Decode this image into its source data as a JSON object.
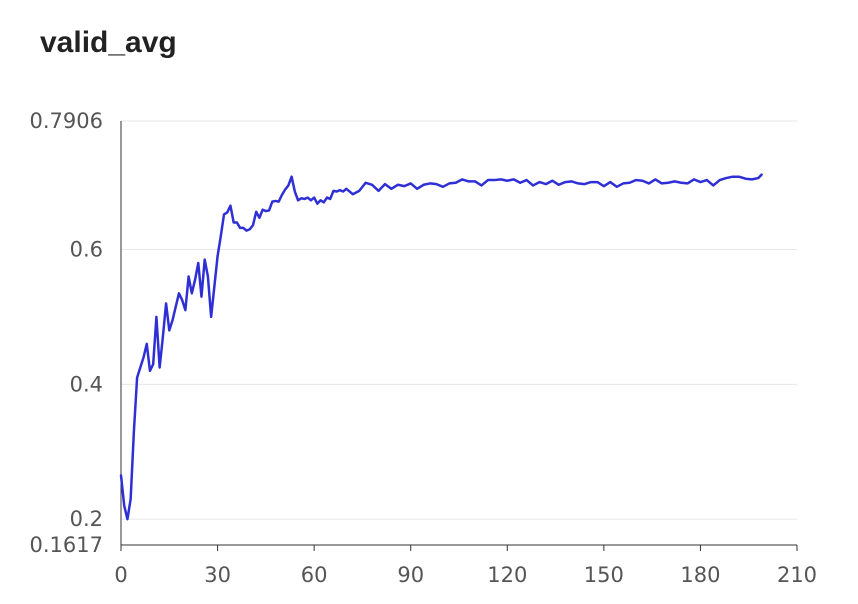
{
  "chart_data": {
    "type": "line",
    "title": "valid_avg",
    "xlabel": "",
    "ylabel": "",
    "xlim": [
      0,
      210
    ],
    "ylim": [
      0.1617,
      0.7906
    ],
    "xticks": [
      0,
      30,
      60,
      90,
      120,
      150,
      180,
      210
    ],
    "xtick_labels": [
      "0",
      "30",
      "60",
      "90",
      "120",
      "150",
      "180",
      "210"
    ],
    "yticks": [
      0.1617,
      0.2,
      0.4,
      0.6,
      0.7906
    ],
    "ytick_labels": [
      "0.1617",
      "0.2",
      "0.4",
      "0.6",
      "0.7906"
    ],
    "grid": true,
    "series_color": "#2f2fd6",
    "series": [
      {
        "x": [
          0,
          1,
          2,
          3,
          4,
          5,
          6,
          7,
          8,
          9,
          10,
          11,
          12,
          13,
          14,
          15,
          16,
          17,
          18,
          19,
          20,
          21,
          22,
          23,
          24,
          25,
          26,
          27,
          28,
          29,
          30,
          31,
          32,
          33,
          34,
          35,
          36,
          37,
          38,
          39,
          40,
          41,
          42,
          43,
          44,
          45,
          46,
          47,
          48,
          49,
          50,
          51,
          52,
          53,
          54,
          55,
          56,
          57,
          58,
          59,
          60,
          61,
          62,
          63,
          64,
          65,
          66,
          67,
          68,
          69,
          70,
          72,
          74,
          76,
          78,
          80,
          82,
          84,
          86,
          88,
          90,
          92,
          94,
          96,
          98,
          100,
          102,
          104,
          106,
          108,
          110,
          112,
          114,
          116,
          118,
          120,
          122,
          124,
          126,
          128,
          130,
          132,
          134,
          136,
          138,
          140,
          142,
          144,
          146,
          148,
          150,
          152,
          154,
          156,
          158,
          160,
          162,
          164,
          166,
          168,
          170,
          172,
          174,
          176,
          178,
          180,
          182,
          184,
          186,
          188,
          190,
          192,
          194,
          196,
          198,
          199
        ],
        "values": [
          0.265,
          0.22,
          0.2,
          0.23,
          0.33,
          0.41,
          0.425,
          0.44,
          0.46,
          0.42,
          0.43,
          0.5,
          0.425,
          0.47,
          0.52,
          0.48,
          0.495,
          0.515,
          0.535,
          0.525,
          0.51,
          0.56,
          0.535,
          0.555,
          0.58,
          0.53,
          0.585,
          0.56,
          0.5,
          0.545,
          0.59,
          0.62,
          0.652,
          0.655,
          0.665,
          0.64,
          0.64,
          0.632,
          0.632,
          0.628,
          0.63,
          0.636,
          0.656,
          0.647,
          0.659,
          0.657,
          0.658,
          0.671,
          0.672,
          0.671,
          0.681,
          0.689,
          0.695,
          0.708,
          0.686,
          0.673,
          0.676,
          0.675,
          0.677,
          0.673,
          0.677,
          0.668,
          0.673,
          0.67,
          0.677,
          0.675,
          0.687,
          0.686,
          0.688,
          0.686,
          0.69,
          0.682,
          0.687,
          0.699,
          0.696,
          0.687,
          0.697,
          0.69,
          0.696,
          0.694,
          0.698,
          0.69,
          0.696,
          0.698,
          0.697,
          0.693,
          0.698,
          0.699,
          0.704,
          0.701,
          0.701,
          0.695,
          0.703,
          0.703,
          0.704,
          0.702,
          0.704,
          0.699,
          0.703,
          0.695,
          0.7,
          0.697,
          0.702,
          0.696,
          0.7,
          0.701,
          0.698,
          0.697,
          0.7,
          0.7,
          0.694,
          0.7,
          0.693,
          0.698,
          0.699,
          0.703,
          0.702,
          0.698,
          0.704,
          0.698,
          0.699,
          0.701,
          0.699,
          0.698,
          0.704,
          0.7,
          0.703,
          0.695,
          0.703,
          0.706,
          0.708,
          0.708,
          0.705,
          0.704,
          0.706,
          0.711
        ]
      }
    ]
  }
}
